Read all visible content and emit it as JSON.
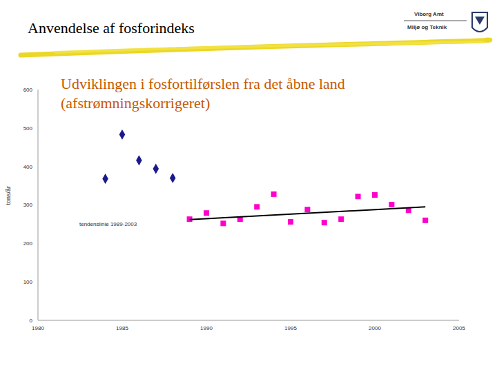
{
  "chart_data": {
    "type": "scatter",
    "title": "Anvendelse af fosforindeks",
    "subtitle": "Udviklingen i fosfortilførslen fra det åbne land (afstrømningskorrigeret)",
    "logo_text": [
      "Viborg Amt",
      "Miljø og Teknik"
    ],
    "y_label": "tons/år",
    "xlim": [
      1980,
      2005
    ],
    "xticks": [
      1980,
      1985,
      1990,
      1995,
      2000,
      2005
    ],
    "ylim": [
      0,
      600
    ],
    "yticks": [
      0,
      100,
      200,
      300,
      400,
      500,
      600
    ],
    "grid": false,
    "series": [
      {
        "color": "#1a1a8c",
        "marker": "diamond",
        "x": [
          1984,
          1985,
          1986,
          1987,
          1988
        ],
        "values": [
          368,
          483,
          416,
          394,
          370
        ]
      },
      {
        "color": "#ff00cc",
        "marker": "square",
        "x": [
          1989,
          1990,
          1991,
          1992,
          1993,
          1994,
          1995,
          1996,
          1997,
          1998,
          1999,
          2000,
          2001,
          2002,
          2003
        ],
        "values": [
          263,
          279,
          252,
          263,
          295,
          328,
          256,
          288,
          254,
          263,
          322,
          326,
          301,
          286,
          260
        ]
      },
      {
        "name": "tendenslinie 1989-2003",
        "type": "line",
        "color": "#000000",
        "x": [
          1989,
          2003
        ],
        "values": [
          262,
          295
        ]
      }
    ]
  }
}
